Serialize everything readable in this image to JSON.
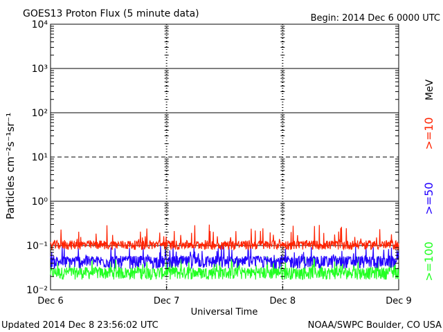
{
  "header": {
    "title": "GOES13 Proton Flux (5 minute data)",
    "begin": "Begin: 2014 Dec 6 0000 UTC"
  },
  "footer": {
    "updated": "Updated 2014 Dec  8 23:56:02 UTC",
    "credit": "NOAA/SWPC Boulder, CO USA"
  },
  "legend": {
    "unit": "MeV",
    "items": [
      {
        "label": ">=10",
        "color": "#ff2200"
      },
      {
        "label": ">=50",
        "color": "#2200ff"
      },
      {
        "label": ">=100",
        "color": "#22ff22"
      }
    ]
  },
  "chart_data": {
    "type": "line",
    "title": "GOES13 Proton Flux (5 minute data)",
    "xlabel": "Universal Time",
    "ylabel": "Particles cm⁻²s⁻¹sr⁻¹",
    "y_scale": "log",
    "ylim": [
      0.01,
      10000
    ],
    "y_ticks": [
      {
        "value": 0.01,
        "label": "10⁻²"
      },
      {
        "value": 0.1,
        "label": "10⁻¹"
      },
      {
        "value": 1,
        "label": "10⁰"
      },
      {
        "value": 10,
        "label": "10¹"
      },
      {
        "value": 100,
        "label": "10²"
      },
      {
        "value": 1000,
        "label": "10³"
      },
      {
        "value": 10000,
        "label": "10⁴"
      }
    ],
    "x_ticks": [
      "Dec 6",
      "Dec 7",
      "Dec 8",
      "Dec 9"
    ],
    "xlim": [
      "2014-12-06 00:00",
      "2014-12-09 00:00"
    ],
    "series": [
      {
        "name": ">=10 MeV",
        "color": "#ff2200",
        "typical": 0.1,
        "low": 0.08,
        "high": 0.3
      },
      {
        "name": ">=50 MeV",
        "color": "#2200ff",
        "typical": 0.045,
        "low": 0.03,
        "high": 0.1
      },
      {
        "name": ">=100 MeV",
        "color": "#22ff22",
        "typical": 0.025,
        "low": 0.017,
        "high": 0.06
      }
    ],
    "threshold_line": {
      "value": 10,
      "style": "dashed"
    }
  }
}
